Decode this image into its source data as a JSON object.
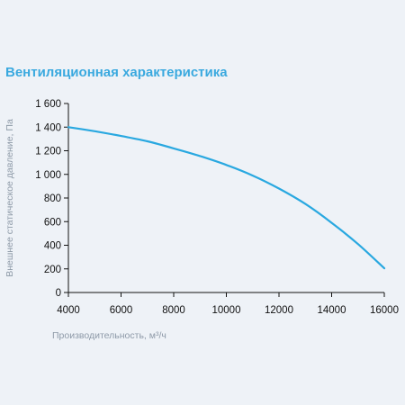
{
  "chart_data": {
    "type": "line",
    "title": "Вентиляционная характеристика",
    "xlabel": "Производительность, м³/ч",
    "ylabel": "Внешнее статическое давление, Па",
    "xlim": [
      4000,
      16000
    ],
    "ylim": [
      0,
      1600
    ],
    "x_ticks": [
      "4000",
      "6000",
      "8000",
      "10000",
      "12000",
      "14000",
      "16000"
    ],
    "x_tick_values": [
      4000,
      6000,
      8000,
      10000,
      12000,
      14000,
      16000
    ],
    "y_ticks": [
      "0",
      "200",
      "400",
      "600",
      "800",
      "1 000",
      "1 200",
      "1 400",
      "1 600"
    ],
    "y_tick_values": [
      0,
      200,
      400,
      600,
      800,
      1000,
      1200,
      1400,
      1600
    ],
    "grid": false,
    "series": [
      {
        "color": "#29a8e0",
        "x": [
          4000,
          5000,
          6000,
          7000,
          8000,
          9000,
          10000,
          11000,
          12000,
          13000,
          14000,
          15000,
          16000
        ],
        "y": [
          1400,
          1365,
          1325,
          1280,
          1220,
          1155,
          1080,
          990,
          880,
          750,
          590,
          410,
          205
        ]
      }
    ]
  }
}
